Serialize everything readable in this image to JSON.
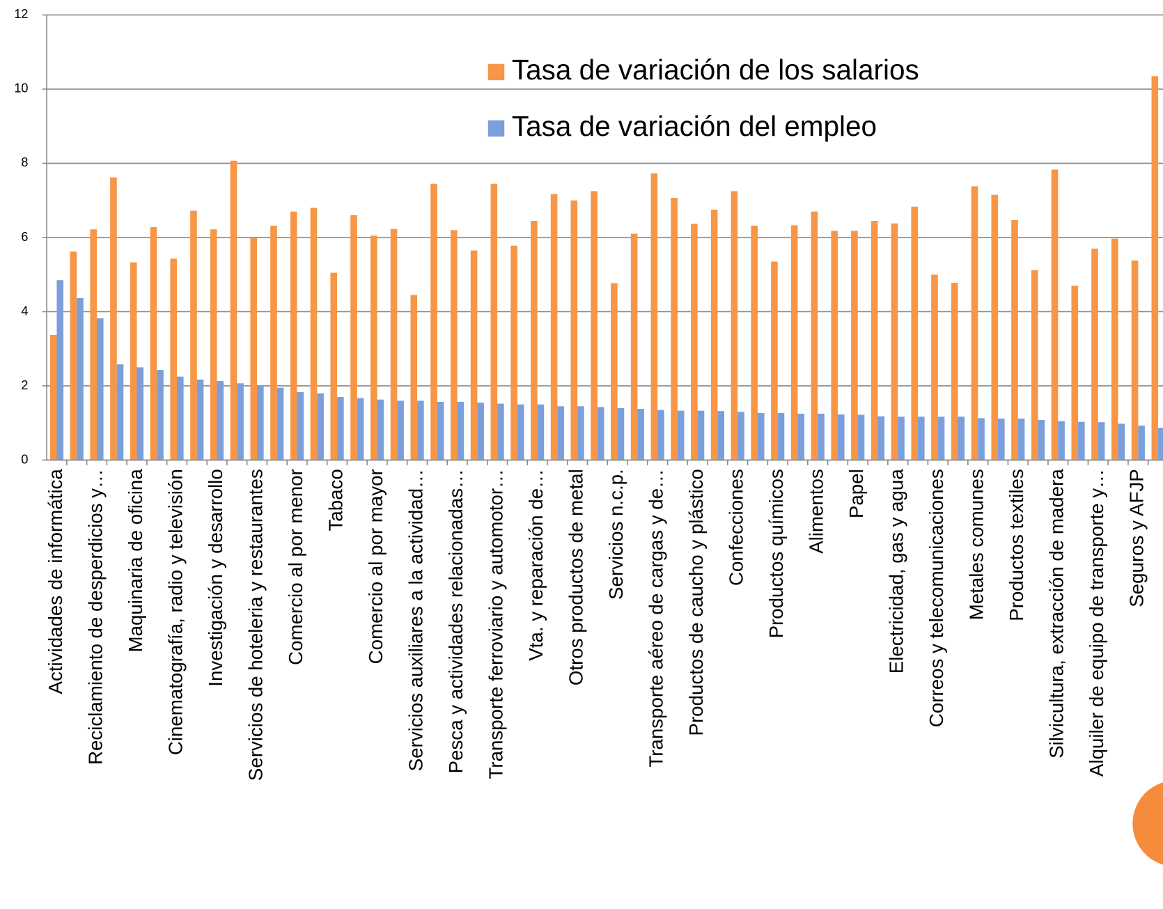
{
  "chart_data": {
    "type": "bar",
    "categories": [
      "Actividades de informática",
      null,
      "Reciclamiento de desperdicios y…",
      null,
      "Maquinaria de oficina",
      null,
      "Cinematografía, radio y televisión",
      null,
      "Investigación y desarrollo",
      null,
      "Servicios de hoteleria y restaurantes",
      null,
      "Comercio al por menor",
      null,
      "Tabaco",
      null,
      "Comercio al por mayor",
      null,
      "Servicios auxiliares a la actividad…",
      null,
      "Pesca y actividades relacionadas…",
      null,
      "Transporte ferroviario y automotor…",
      null,
      "Vta. y reparación de…",
      null,
      "Otros productos de metal",
      null,
      "Servicios n.c.p.",
      null,
      "Transporte aéreo de cargas y de…",
      null,
      "Productos de caucho y plástico",
      null,
      "Confecciones",
      null,
      "Productos químicos",
      null,
      "Alimentos",
      null,
      "Papel",
      null,
      "Electricidad, gas y agua",
      null,
      "Correos y telecomunicaciones",
      null,
      "Metales comunes",
      null,
      "Productos textiles",
      null,
      "Silvicultura, extracción de madera",
      null,
      "Alquiler de equipo de transporte y…",
      null,
      "Seguros y AFJP",
      null
    ],
    "series": [
      {
        "name": "Tasa de variación de los salarios",
        "color": "#f79646",
        "values": [
          3.37,
          5.62,
          6.22,
          7.62,
          5.33,
          6.28,
          5.43,
          6.72,
          6.22,
          8.07,
          5.98,
          6.32,
          6.7,
          6.8,
          5.05,
          6.6,
          6.05,
          6.23,
          4.45,
          7.45,
          6.2,
          5.65,
          7.45,
          5.78,
          6.45,
          7.17,
          7.0,
          7.25,
          4.77,
          6.1,
          7.73,
          7.07,
          6.37,
          6.75,
          7.25,
          6.32,
          5.35,
          6.33,
          6.7,
          6.18,
          6.18,
          6.45,
          6.38,
          6.83,
          5.0,
          4.78,
          7.38,
          7.15,
          6.47,
          5.12,
          7.83,
          4.7,
          5.7,
          5.97,
          5.38,
          10.35
        ]
      },
      {
        "name": "Tasa de variación del empleo",
        "color": "#7b9fdb",
        "values": [
          4.85,
          4.37,
          3.82,
          2.58,
          2.5,
          2.43,
          2.25,
          2.17,
          2.13,
          2.07,
          2.0,
          1.95,
          1.83,
          1.8,
          1.7,
          1.67,
          1.63,
          1.6,
          1.6,
          1.57,
          1.57,
          1.55,
          1.52,
          1.5,
          1.5,
          1.45,
          1.45,
          1.43,
          1.4,
          1.38,
          1.35,
          1.33,
          1.33,
          1.32,
          1.3,
          1.27,
          1.27,
          1.25,
          1.25,
          1.23,
          1.22,
          1.18,
          1.17,
          1.17,
          1.17,
          1.17,
          1.13,
          1.12,
          1.12,
          1.08,
          1.05,
          1.03,
          1.02,
          0.98,
          0.93,
          0.87
        ]
      }
    ],
    "ylim": [
      0,
      12
    ],
    "yticks": [
      0,
      2,
      4,
      6,
      8,
      10,
      12
    ],
    "grid": true,
    "legend": "top"
  }
}
